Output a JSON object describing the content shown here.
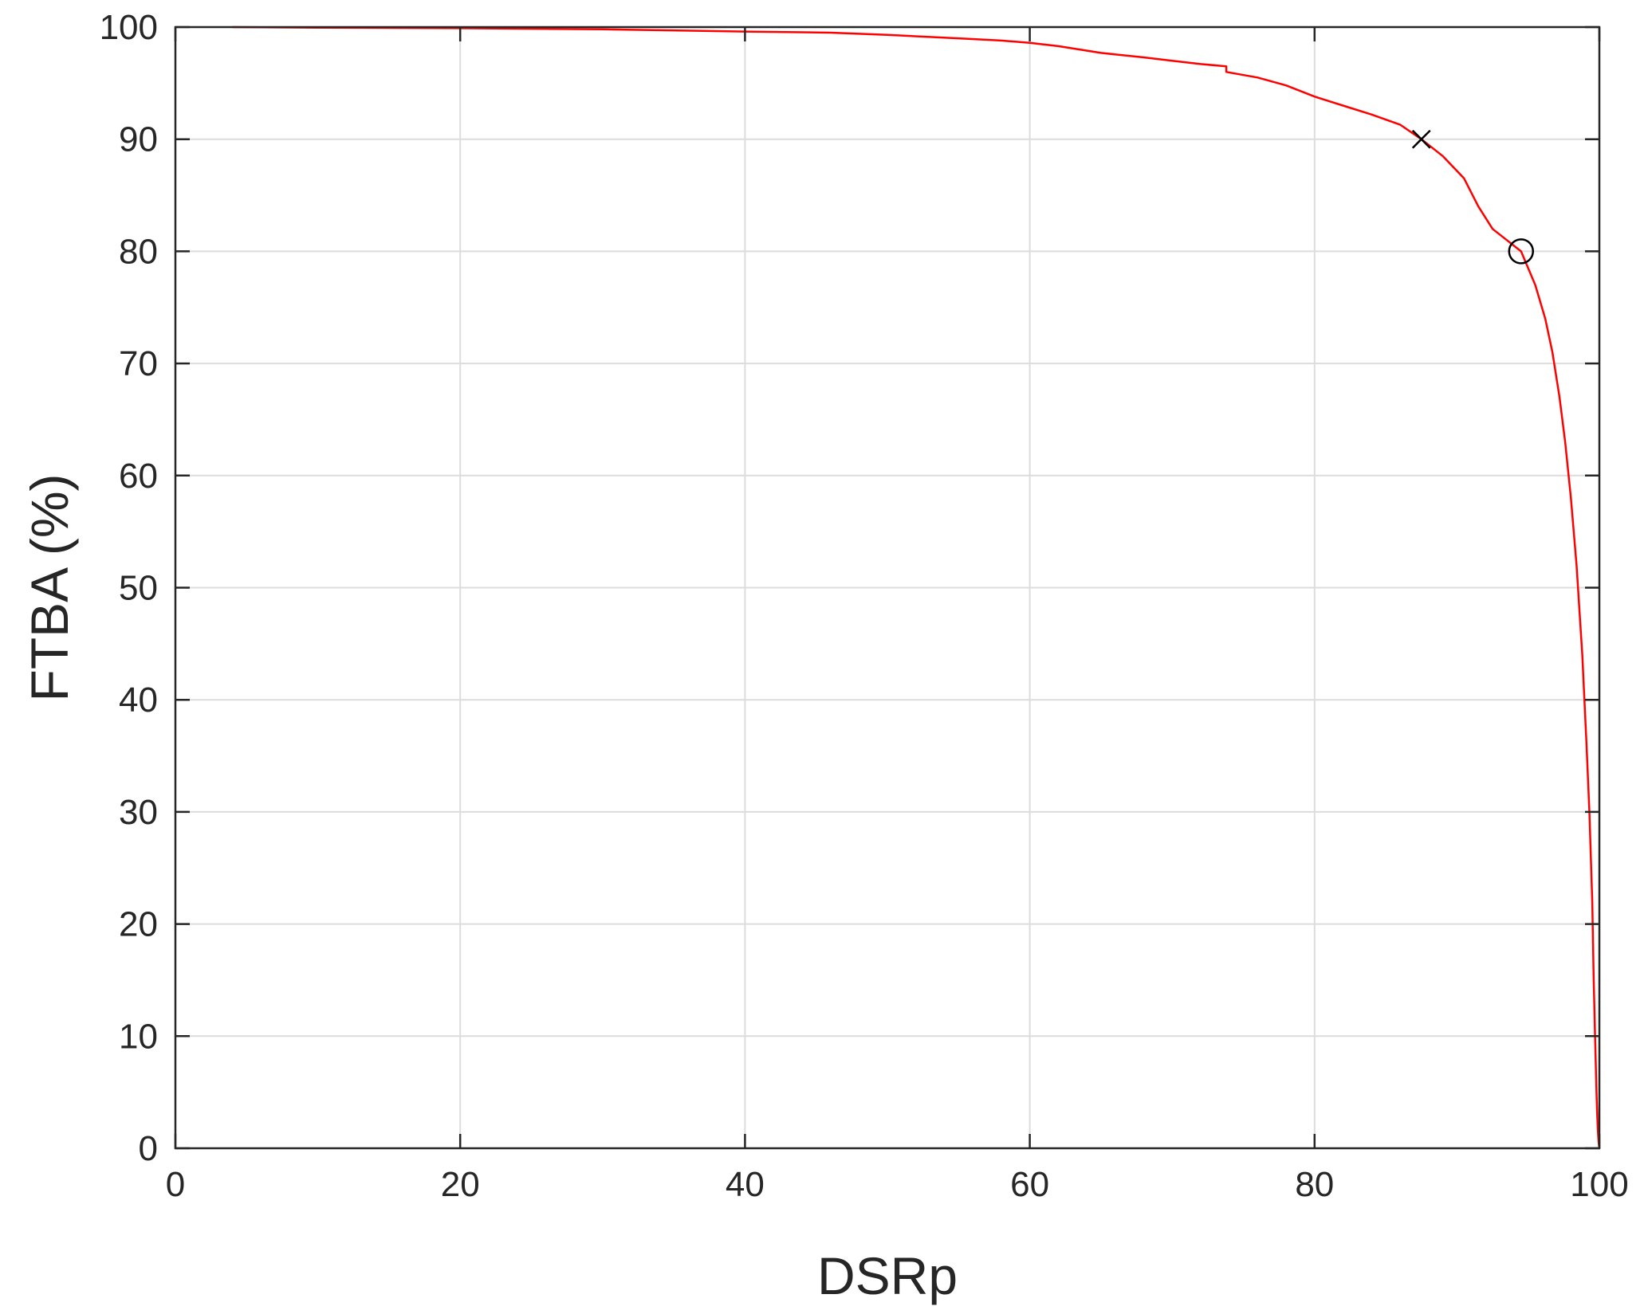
{
  "chart_data": {
    "type": "line",
    "title": "",
    "xlabel": "DSRp",
    "ylabel": "FTBA (%)",
    "xlim": [
      0,
      100
    ],
    "ylim": [
      0,
      100
    ],
    "grid": true,
    "x_ticks": [
      0,
      20,
      40,
      60,
      80,
      100
    ],
    "y_ticks": [
      0,
      10,
      20,
      30,
      40,
      50,
      60,
      70,
      80,
      90,
      100
    ],
    "x_tick_labels": [
      "0",
      "20",
      "40",
      "60",
      "80",
      "100"
    ],
    "y_tick_labels": [
      "0",
      "10",
      "20",
      "30",
      "40",
      "50",
      "60",
      "70",
      "80",
      "90",
      "100"
    ],
    "series": [
      {
        "color": "#ff0000",
        "x": [
          4,
          10,
          20,
          30,
          40,
          46,
          50,
          55,
          58,
          60,
          62,
          65,
          68,
          70,
          72,
          73.8,
          73.8,
          76,
          78,
          80,
          82,
          84,
          86,
          87.5,
          89,
          90.5,
          91.5,
          92.5,
          93.5,
          94.5,
          95.5,
          96.2,
          96.7,
          97.2,
          97.6,
          98.0,
          98.4,
          98.8,
          99.1,
          99.3,
          99.5,
          99.6,
          99.7,
          99.8,
          99.85,
          99.9,
          99.95,
          100
        ],
        "y": [
          100,
          99.95,
          99.9,
          99.8,
          99.6,
          99.5,
          99.3,
          99.0,
          98.8,
          98.6,
          98.3,
          97.7,
          97.3,
          97.0,
          96.7,
          96.5,
          96.0,
          95.5,
          94.8,
          93.8,
          93.0,
          92.2,
          91.3,
          90.0,
          88.5,
          86.5,
          84.0,
          82.0,
          81.0,
          80.0,
          77.0,
          74.0,
          71.0,
          67.0,
          63.0,
          58.0,
          52.0,
          44.0,
          36.0,
          30.0,
          22.0,
          15.0,
          10.0,
          5.0,
          3.0,
          1.5,
          0.5,
          0
        ]
      }
    ],
    "markers": [
      {
        "symbol": "cross",
        "x": 87.5,
        "y": 90,
        "color": "#000000"
      },
      {
        "symbol": "circle",
        "x": 94.5,
        "y": 80,
        "color": "#000000"
      }
    ],
    "colors": {
      "line": "#ff0000",
      "grid": "#dcdcdc",
      "axis": "#262626",
      "marker": "#000000"
    }
  }
}
